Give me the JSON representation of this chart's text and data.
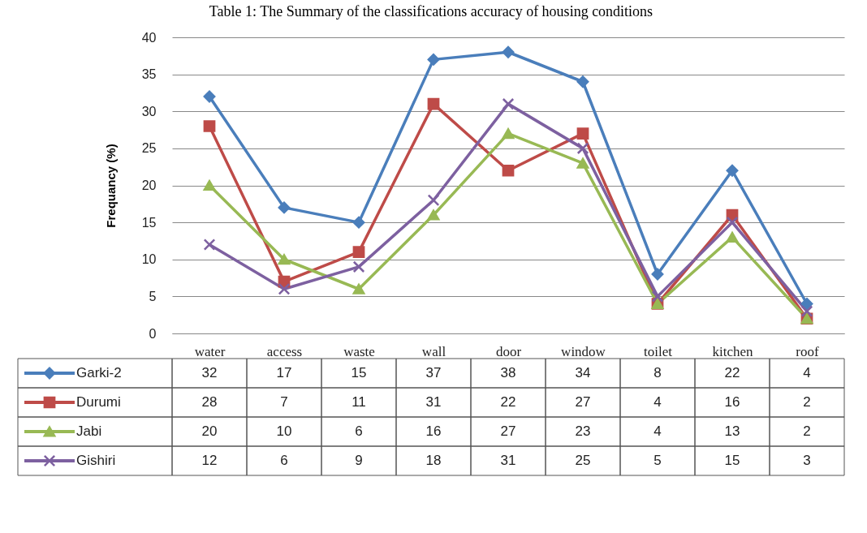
{
  "chart_data": {
    "type": "line",
    "title": "Table 1: The Summary of the classifications accuracy of housing conditions",
    "ylabel": "Frequancy (%)",
    "categories": [
      "water",
      "access",
      "waste",
      "wall",
      "door",
      "window",
      "toilet",
      "kitchen",
      "roof"
    ],
    "series": [
      {
        "name": "Garki-2",
        "color": "#4a7ebb",
        "marker": "diamond",
        "values": [
          32,
          17,
          15,
          37,
          38,
          34,
          8,
          22,
          4
        ]
      },
      {
        "name": "Durumi",
        "color": "#be4b48",
        "marker": "square",
        "values": [
          28,
          7,
          11,
          31,
          22,
          27,
          4,
          16,
          2
        ]
      },
      {
        "name": "Jabi",
        "color": "#98b954",
        "marker": "triangle",
        "values": [
          20,
          10,
          6,
          16,
          27,
          23,
          4,
          13,
          2
        ]
      },
      {
        "name": "Gishiri",
        "color": "#7d60a0",
        "marker": "cross",
        "values": [
          12,
          6,
          9,
          18,
          31,
          25,
          5,
          15,
          3
        ]
      }
    ],
    "ylim": [
      0,
      40
    ],
    "yticks": [
      0,
      5,
      10,
      15,
      20,
      25,
      30,
      35,
      40
    ],
    "grid": "y",
    "legend": "bottom",
    "data_labels": true
  }
}
